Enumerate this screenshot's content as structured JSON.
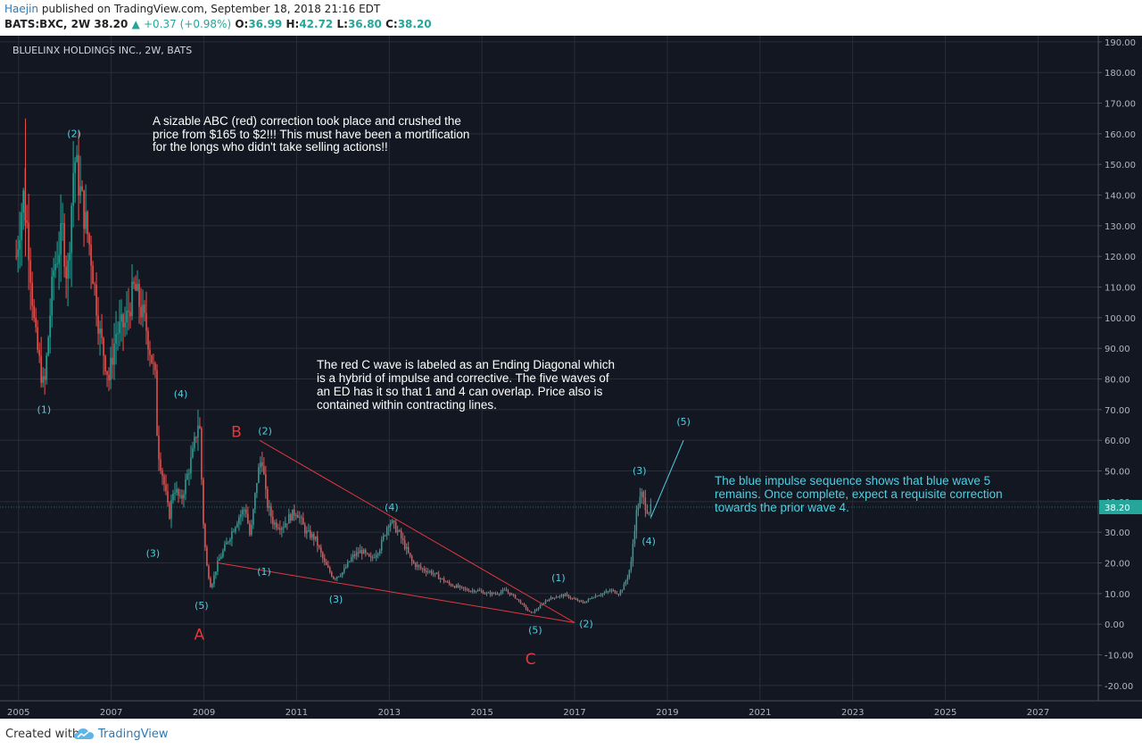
{
  "header": {
    "author": "Haejin",
    "published_text": "published on TradingView.com, September 18, 2018 21:16 EDT",
    "symbol_interval": "BATS:BXC, 2W",
    "last": "38.20",
    "change": "+0.37 (+0.98%)",
    "o_label": "O:",
    "o_val": "36.99",
    "h_label": "H:",
    "h_val": "42.72",
    "l_label": "L:",
    "l_val": "36.80",
    "c_label": "C:",
    "c_val": "38.20"
  },
  "footer": {
    "created_with": "Created with",
    "brand": "TradingView"
  },
  "colors": {
    "bg": "#131722",
    "up": "#26a69a",
    "down": "#ef5350",
    "cyan": "#4dd0e1",
    "red": "#e0393e",
    "grid": "#2a2e39"
  },
  "chart_data": {
    "type": "candlestick",
    "title": "BLUELINX HOLDINGS INC., 2W, BATS",
    "last_price": 38.2,
    "last_price_label": "38.20",
    "ylim": [
      -25,
      192
    ],
    "xlim": [
      2004.6,
      2028.3
    ],
    "y_ticks": [
      190,
      180,
      170,
      160,
      150,
      140,
      130,
      120,
      110,
      100,
      90,
      80,
      70,
      60,
      50,
      40,
      30,
      20,
      10,
      0,
      -10,
      -20
    ],
    "y_tick_labels": [
      "190.00",
      "180.00",
      "170.00",
      "160.00",
      "150.00",
      "140.00",
      "130.00",
      "120.00",
      "110.00",
      "100.00",
      "90.00",
      "80.00",
      "70.00",
      "60.00",
      "50.00",
      "40.00",
      "30.00",
      "20.00",
      "10.00",
      "0.00",
      "-10.00",
      "-20.00"
    ],
    "x_ticks": [
      2005,
      2007,
      2009,
      2011,
      2013,
      2015,
      2017,
      2019,
      2021,
      2023,
      2025,
      2027
    ],
    "x_tick_labels": [
      "2005",
      "2007",
      "2009",
      "2011",
      "2013",
      "2015",
      "2017",
      "2019",
      "2021",
      "2023",
      "2025",
      "2027"
    ],
    "price_path": [
      [
        2004.95,
        120
      ],
      [
        2005.1,
        140
      ],
      [
        2005.2,
        128
      ],
      [
        2005.35,
        95
      ],
      [
        2005.55,
        76
      ],
      [
        2005.75,
        115
      ],
      [
        2005.95,
        128
      ],
      [
        2006.05,
        112
      ],
      [
        2006.2,
        153
      ],
      [
        2006.4,
        135
      ],
      [
        2006.55,
        122
      ],
      [
        2006.75,
        95
      ],
      [
        2006.95,
        80
      ],
      [
        2007.1,
        95
      ],
      [
        2007.3,
        98
      ],
      [
        2007.5,
        110
      ],
      [
        2007.75,
        97
      ],
      [
        2007.95,
        80
      ],
      [
        2008.0,
        58
      ],
      [
        2008.15,
        45
      ],
      [
        2008.25,
        35
      ],
      [
        2008.35,
        45
      ],
      [
        2008.5,
        40
      ],
      [
        2008.75,
        55
      ],
      [
        2008.9,
        68
      ],
      [
        2008.98,
        35
      ],
      [
        2009.05,
        20
      ],
      [
        2009.15,
        12
      ],
      [
        2009.3,
        20
      ],
      [
        2009.45,
        25
      ],
      [
        2009.6,
        30
      ],
      [
        2009.75,
        35
      ],
      [
        2009.9,
        38
      ],
      [
        2010.0,
        28
      ],
      [
        2010.15,
        48
      ],
      [
        2010.25,
        55
      ],
      [
        2010.35,
        40
      ],
      [
        2010.5,
        33
      ],
      [
        2010.7,
        32
      ],
      [
        2010.85,
        35
      ],
      [
        2011.0,
        37
      ],
      [
        2011.2,
        30
      ],
      [
        2011.4,
        28
      ],
      [
        2011.6,
        20
      ],
      [
        2011.8,
        15
      ],
      [
        2012.0,
        17
      ],
      [
        2012.2,
        22
      ],
      [
        2012.4,
        24
      ],
      [
        2012.6,
        21
      ],
      [
        2012.8,
        25
      ],
      [
        2013.0,
        34
      ],
      [
        2013.2,
        30
      ],
      [
        2013.35,
        25
      ],
      [
        2013.5,
        20
      ],
      [
        2013.7,
        18
      ],
      [
        2013.9,
        17
      ],
      [
        2014.1,
        15
      ],
      [
        2014.3,
        13
      ],
      [
        2014.5,
        12
      ],
      [
        2014.7,
        11
      ],
      [
        2014.9,
        11
      ],
      [
        2015.1,
        10
      ],
      [
        2015.3,
        10
      ],
      [
        2015.5,
        11
      ],
      [
        2015.7,
        9
      ],
      [
        2015.9,
        6
      ],
      [
        2016.05,
        3.5
      ],
      [
        2016.2,
        5
      ],
      [
        2016.4,
        8
      ],
      [
        2016.6,
        9
      ],
      [
        2016.8,
        9.5
      ],
      [
        2017.0,
        8
      ],
      [
        2017.2,
        7
      ],
      [
        2017.4,
        9
      ],
      [
        2017.6,
        10
      ],
      [
        2017.8,
        11
      ],
      [
        2017.95,
        10
      ],
      [
        2018.05,
        12
      ],
      [
        2018.15,
        16
      ],
      [
        2018.22,
        20
      ],
      [
        2018.28,
        30
      ],
      [
        2018.35,
        38
      ],
      [
        2018.45,
        42
      ],
      [
        2018.55,
        38
      ],
      [
        2018.62,
        36.99
      ],
      [
        2018.68,
        38.2
      ]
    ],
    "annotations": [
      {
        "text": "A sizable ABC (red) correction took place and crushed the",
        "color": "white"
      },
      {
        "text": "price from $165 to $2!!! This must have been a mortification",
        "color": "white"
      },
      {
        "text": "for the longs who didn't take selling actions!!",
        "color": "white"
      },
      {
        "text": "The red C wave is labeled as an Ending Diagonal which",
        "color": "white"
      },
      {
        "text": "is a hybrid of impulse and corrective. The five waves of",
        "color": "white"
      },
      {
        "text": "an ED has it so that 1 and 4 can overlap. Price also is",
        "color": "white"
      },
      {
        "text": "contained within contracting lines.",
        "color": "white"
      },
      {
        "text": "The blue impulse sequence shows that blue wave 5",
        "color": "cyan"
      },
      {
        "text": "remains. Once complete, expect a requisite correction",
        "color": "cyan"
      },
      {
        "text": "towards the prior wave 4.",
        "color": "cyan"
      }
    ],
    "wave_labels": [
      {
        "text": "(1)",
        "x": 2005.55,
        "y": 69,
        "color": "cyan"
      },
      {
        "text": "(2)",
        "x": 2006.2,
        "y": 159,
        "color": "cyan"
      },
      {
        "text": "(3)",
        "x": 2007.9,
        "y": 22,
        "color": "cyan"
      },
      {
        "text": "(4)",
        "x": 2008.5,
        "y": 74,
        "color": "cyan"
      },
      {
        "text": "(5)",
        "x": 2008.95,
        "y": 5,
        "color": "cyan"
      },
      {
        "text": "(1)",
        "x": 2010.3,
        "y": 16,
        "color": "cyan"
      },
      {
        "text": "(2)",
        "x": 2010.32,
        "y": 62,
        "color": "cyan"
      },
      {
        "text": "(3)",
        "x": 2011.85,
        "y": 7,
        "color": "cyan"
      },
      {
        "text": "(4)",
        "x": 2013.05,
        "y": 37,
        "color": "cyan"
      },
      {
        "text": "(5)",
        "x": 2016.15,
        "y": -3,
        "color": "cyan"
      },
      {
        "text": "(2)",
        "x": 2017.25,
        "y": -1,
        "color": "cyan"
      },
      {
        "text": "(1)",
        "x": 2016.65,
        "y": 14,
        "color": "cyan"
      },
      {
        "text": "(3)",
        "x": 2018.4,
        "y": 49,
        "color": "cyan"
      },
      {
        "text": "(4)",
        "x": 2018.6,
        "y": 26,
        "color": "cyan"
      },
      {
        "text": "(5)",
        "x": 2019.35,
        "y": 65,
        "color": "cyan"
      },
      {
        "text": "A",
        "x": 2008.9,
        "y": -5,
        "color": "red"
      },
      {
        "text": "B",
        "x": 2009.7,
        "y": 61,
        "color": "red"
      },
      {
        "text": "C",
        "x": 2016.05,
        "y": -13,
        "color": "red"
      }
    ],
    "trendlines": [
      {
        "from": [
          2010.2,
          60
        ],
        "to": [
          2017.0,
          0.5
        ],
        "color": "red"
      },
      {
        "from": [
          2009.3,
          20
        ],
        "to": [
          2017.0,
          0.5
        ],
        "color": "red"
      },
      {
        "from": [
          2018.65,
          35
        ],
        "to": [
          2019.35,
          60
        ],
        "color": "cyan"
      }
    ]
  }
}
